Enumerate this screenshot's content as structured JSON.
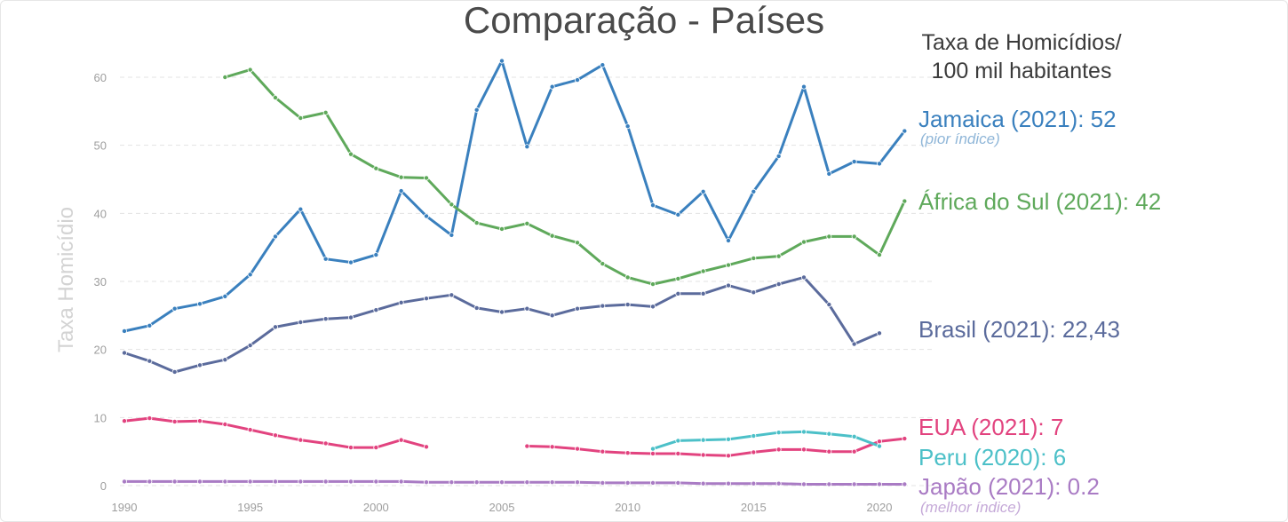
{
  "title": "Comparação - Países",
  "units": {
    "line1": "Taxa de Homicídios/",
    "line2": "100 mil habitantes"
  },
  "labels": {
    "jamaica": {
      "text": "Jamaica (2021): 52",
      "note": "(pior índice)"
    },
    "africa": {
      "text": "África do Sul (2021): 42"
    },
    "brasil": {
      "text": "Brasil (2021): 22,43"
    },
    "eua": {
      "text": "EUA (2021): 7"
    },
    "peru": {
      "text": "Peru (2020): 6"
    },
    "japao": {
      "text": "Japão (2021): 0.2",
      "note": "(melhor índice)"
    }
  },
  "colors": {
    "jamaica": "#3a80be",
    "jamaica_note": "#8fb6d8",
    "africa": "#5fa95b",
    "brasil": "#5b6b9c",
    "eua": "#e2437f",
    "peru": "#4cc0c8",
    "japao": "#a97bc4",
    "japao_note": "#c5a9d8",
    "grid": "#e3e3e3",
    "tick": "#9e9e9e",
    "ylabel": "#d3d3d3"
  },
  "chart_data": {
    "type": "line",
    "title": "Comparação - Países",
    "ylabel": "Taxa Homicídio",
    "xlabel": "",
    "xlim": [
      1990,
      2022
    ],
    "ylim": [
      0,
      65
    ],
    "x_ticks": [
      1990,
      1995,
      2000,
      2005,
      2010,
      2015,
      2020
    ],
    "y_ticks": [
      0,
      10,
      20,
      30,
      40,
      50,
      60
    ],
    "grid": "horizontal dashed",
    "series": [
      {
        "name": "Jamaica",
        "color_key": "jamaica",
        "points": [
          [
            1990,
            22.7
          ],
          [
            1991,
            23.5
          ],
          [
            1992,
            26
          ],
          [
            1993,
            26.7
          ],
          [
            1994,
            27.8
          ],
          [
            1995,
            31
          ],
          [
            1996,
            36.6
          ],
          [
            1997,
            40.6
          ],
          [
            1998,
            33.3
          ],
          [
            1999,
            32.8
          ],
          [
            2000,
            33.9
          ],
          [
            2001,
            43.3
          ],
          [
            2002,
            39.6
          ],
          [
            2003,
            36.8
          ],
          [
            2004,
            55.2
          ],
          [
            2005,
            62.4
          ],
          [
            2006,
            49.8
          ],
          [
            2007,
            58.6
          ],
          [
            2008,
            59.6
          ],
          [
            2009,
            61.8
          ],
          [
            2010,
            52.8
          ],
          [
            2011,
            41.2
          ],
          [
            2012,
            39.8
          ],
          [
            2013,
            43.2
          ],
          [
            2014,
            36
          ],
          [
            2015,
            43.2
          ],
          [
            2016,
            48.4
          ],
          [
            2017,
            58.6
          ],
          [
            2018,
            45.8
          ],
          [
            2019,
            47.6
          ],
          [
            2020,
            47.3
          ],
          [
            2021,
            52.1
          ]
        ]
      },
      {
        "name": "África do Sul",
        "color_key": "africa",
        "points": [
          [
            1994,
            60
          ],
          [
            1995,
            61.1
          ],
          [
            1996,
            57
          ],
          [
            1997,
            54
          ],
          [
            1998,
            54.8
          ],
          [
            1999,
            48.7
          ],
          [
            2000,
            46.6
          ],
          [
            2001,
            45.3
          ],
          [
            2002,
            45.2
          ],
          [
            2003,
            41.3
          ],
          [
            2004,
            38.6
          ],
          [
            2005,
            37.7
          ],
          [
            2006,
            38.5
          ],
          [
            2007,
            36.7
          ],
          [
            2008,
            35.7
          ],
          [
            2009,
            32.6
          ],
          [
            2010,
            30.6
          ],
          [
            2011,
            29.6
          ],
          [
            2012,
            30.4
          ],
          [
            2013,
            31.5
          ],
          [
            2014,
            32.4
          ],
          [
            2015,
            33.4
          ],
          [
            2016,
            33.7
          ],
          [
            2017,
            35.8
          ],
          [
            2018,
            36.6
          ],
          [
            2019,
            36.6
          ],
          [
            2020,
            33.9
          ],
          [
            2021,
            41.8
          ]
        ]
      },
      {
        "name": "Brasil",
        "color_key": "brasil",
        "points": [
          [
            1990,
            19.5
          ],
          [
            1991,
            18.3
          ],
          [
            1992,
            16.7
          ],
          [
            1993,
            17.7
          ],
          [
            1994,
            18.5
          ],
          [
            1995,
            20.6
          ],
          [
            1996,
            23.3
          ],
          [
            1997,
            24
          ],
          [
            1998,
            24.5
          ],
          [
            1999,
            24.7
          ],
          [
            2000,
            25.8
          ],
          [
            2001,
            26.9
          ],
          [
            2002,
            27.5
          ],
          [
            2003,
            28
          ],
          [
            2004,
            26.1
          ],
          [
            2005,
            25.5
          ],
          [
            2006,
            26
          ],
          [
            2007,
            25
          ],
          [
            2008,
            26
          ],
          [
            2009,
            26.4
          ],
          [
            2010,
            26.6
          ],
          [
            2011,
            26.3
          ],
          [
            2012,
            28.2
          ],
          [
            2013,
            28.2
          ],
          [
            2014,
            29.4
          ],
          [
            2015,
            28.4
          ],
          [
            2016,
            29.6
          ],
          [
            2017,
            30.6
          ],
          [
            2018,
            26.6
          ],
          [
            2019,
            20.8
          ],
          [
            2020,
            22.4
          ]
        ]
      },
      {
        "name": "EUA",
        "color_key": "eua",
        "segments": [
          [
            [
              1990,
              9.5
            ],
            [
              1991,
              9.9
            ],
            [
              1992,
              9.4
            ],
            [
              1993,
              9.5
            ],
            [
              1994,
              9
            ],
            [
              1995,
              8.2
            ],
            [
              1996,
              7.4
            ],
            [
              1997,
              6.7
            ],
            [
              1998,
              6.2
            ],
            [
              1999,
              5.6
            ],
            [
              2000,
              5.6
            ],
            [
              2001,
              6.7
            ],
            [
              2002,
              5.7
            ]
          ],
          [
            [
              2006,
              5.8
            ],
            [
              2007,
              5.7
            ],
            [
              2008,
              5.4
            ],
            [
              2009,
              5
            ],
            [
              2010,
              4.8
            ],
            [
              2011,
              4.7
            ],
            [
              2012,
              4.7
            ],
            [
              2013,
              4.5
            ],
            [
              2014,
              4.4
            ],
            [
              2015,
              4.9
            ],
            [
              2016,
              5.3
            ],
            [
              2017,
              5.3
            ],
            [
              2018,
              5
            ],
            [
              2019,
              5
            ],
            [
              2020,
              6.5
            ],
            [
              2021,
              6.9
            ]
          ]
        ]
      },
      {
        "name": "Peru",
        "color_key": "peru",
        "points": [
          [
            2011,
            5.4
          ],
          [
            2012,
            6.6
          ],
          [
            2013,
            6.7
          ],
          [
            2014,
            6.8
          ],
          [
            2015,
            7.3
          ],
          [
            2016,
            7.8
          ],
          [
            2017,
            7.9
          ],
          [
            2018,
            7.6
          ],
          [
            2019,
            7.2
          ],
          [
            2020,
            5.8
          ]
        ]
      },
      {
        "name": "Japão",
        "color_key": "japao",
        "points": [
          [
            1990,
            0.6
          ],
          [
            1991,
            0.6
          ],
          [
            1992,
            0.6
          ],
          [
            1993,
            0.6
          ],
          [
            1994,
            0.6
          ],
          [
            1995,
            0.6
          ],
          [
            1996,
            0.6
          ],
          [
            1997,
            0.6
          ],
          [
            1998,
            0.6
          ],
          [
            1999,
            0.6
          ],
          [
            2000,
            0.6
          ],
          [
            2001,
            0.6
          ],
          [
            2002,
            0.5
          ],
          [
            2003,
            0.5
          ],
          [
            2004,
            0.5
          ],
          [
            2005,
            0.5
          ],
          [
            2006,
            0.5
          ],
          [
            2007,
            0.5
          ],
          [
            2008,
            0.5
          ],
          [
            2009,
            0.4
          ],
          [
            2010,
            0.4
          ],
          [
            2011,
            0.4
          ],
          [
            2012,
            0.4
          ],
          [
            2013,
            0.3
          ],
          [
            2014,
            0.3
          ],
          [
            2015,
            0.3
          ],
          [
            2016,
            0.3
          ],
          [
            2017,
            0.2
          ],
          [
            2018,
            0.2
          ],
          [
            2019,
            0.2
          ],
          [
            2020,
            0.2
          ],
          [
            2021,
            0.2
          ]
        ]
      }
    ]
  }
}
